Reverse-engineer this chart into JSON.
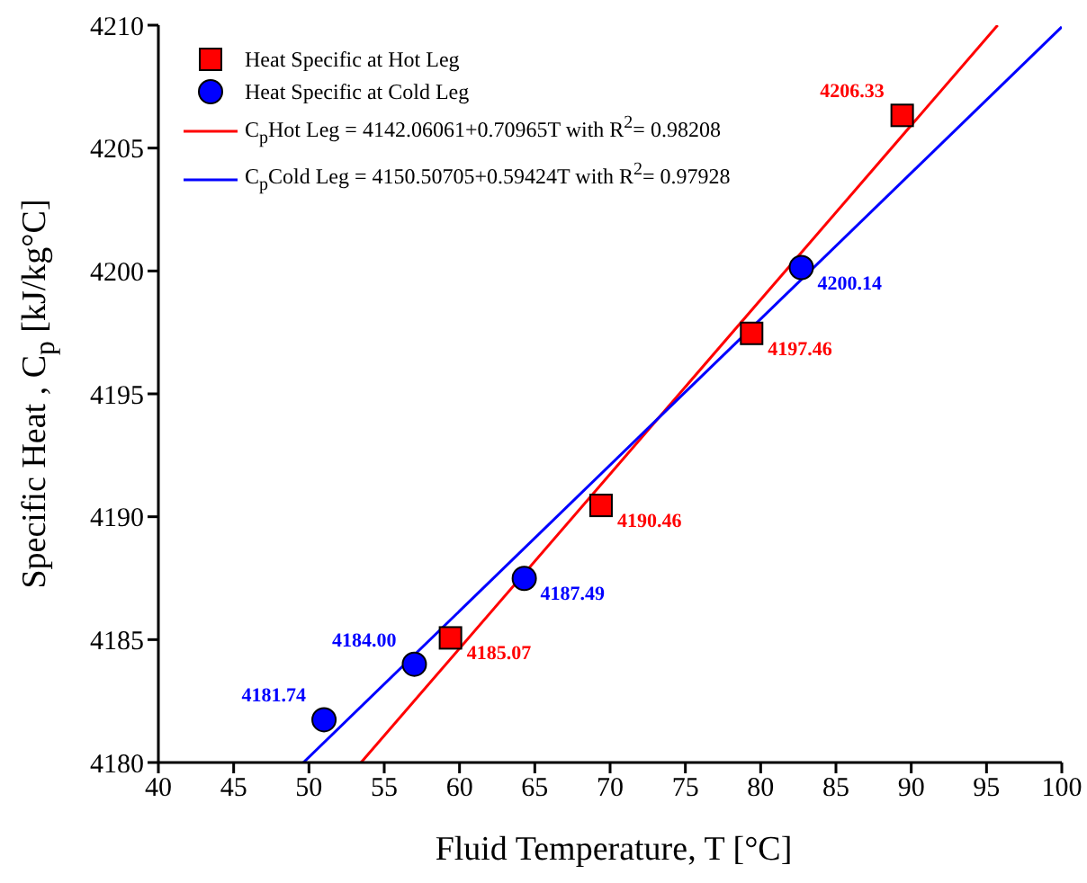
{
  "chart_data": {
    "type": "scatter",
    "xlabel": "Fluid Temperature, T [°C]",
    "ylabel": "Specific Heat , C$_{p}$ [kJ/kg°C]",
    "xlim": [
      40,
      100
    ],
    "xticks": [
      40,
      45,
      50,
      55,
      60,
      65,
      70,
      75,
      80,
      85,
      90,
      95,
      100
    ],
    "ylim": [
      4180,
      4210
    ],
    "yticks": [
      4180,
      4185,
      4190,
      4195,
      4200,
      4205,
      4210
    ],
    "grid": false,
    "legend": "top left",
    "series": [
      {
        "name": "Heat Specific at Hot Leg",
        "marker": "square",
        "color": "#ff0000",
        "x": [
          59.4,
          69.4,
          79.4,
          89.4
        ],
        "values": [
          4185.07,
          4190.46,
          4197.46,
          4206.33
        ],
        "value_labels": [
          "4185.07",
          "4190.46",
          "4197.46",
          "4206.33"
        ]
      },
      {
        "name": "Heat Specific at Cold Leg",
        "marker": "circle",
        "color": "#0000ff",
        "x": [
          51,
          57,
          64.3,
          82.7
        ],
        "values": [
          4181.74,
          4184.0,
          4187.49,
          4200.14
        ],
        "value_labels": [
          "4181.74",
          "4184.00",
          "4187.49",
          "4200.14"
        ]
      },
      {
        "name": "C$_{p}$Hot Leg = 4142.06061+0.70965T with R$^{2}$= 0.98208",
        "type": "line",
        "line_style": "solid",
        "color": "#ff0000",
        "x": [
          53.46,
          95.74
        ],
        "values": [
          4180,
          4210
        ]
      },
      {
        "name": "C$_{p}$Cold Leg = 4150.50705+0.59424T with R$^{2}$= 0.97928",
        "type": "line",
        "line_style": "solid",
        "color": "#0000ff",
        "x": [
          49.63,
          100
        ],
        "values": [
          4180,
          4209.93
        ]
      }
    ]
  }
}
